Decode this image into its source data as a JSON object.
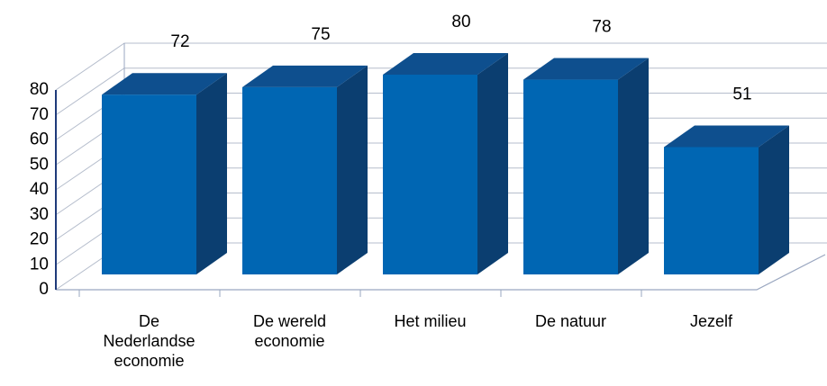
{
  "chart_data": {
    "type": "bar3d",
    "categories": [
      "De Nederlandse economie",
      "De wereld economie",
      "Het milieu",
      "De natuur",
      "Jezelf"
    ],
    "values": [
      72,
      75,
      80,
      78,
      51
    ],
    "color": "#0066b3",
    "ylim": [
      0,
      80
    ],
    "yticks": [
      0,
      10,
      20,
      30,
      40,
      50,
      60,
      70,
      80
    ],
    "grid": true
  }
}
